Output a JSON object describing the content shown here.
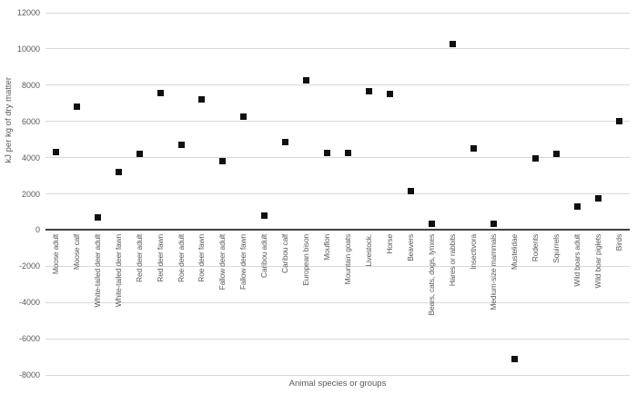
{
  "chart_data": {
    "type": "scatter",
    "title": "",
    "xlabel": "Animal species or groups",
    "ylabel": "kJ per kg of dry matter",
    "ylim": [
      -8000,
      12000
    ],
    "yticks": [
      12000,
      10000,
      8000,
      6000,
      4000,
      2000,
      0,
      -2000,
      -4000,
      -6000,
      -8000
    ],
    "grid": true,
    "legend_position": "none",
    "marker": {
      "shape": "square",
      "size": 7,
      "color": "#101010"
    },
    "x_label_rotation": "vertical-bottom-to-top",
    "categories": [
      "Moose adult",
      "Moose calf",
      "White-tailed deer adult",
      "White-tailed deer fawn",
      "Red deer adult",
      "Red deer fawn",
      "Roe deer adult",
      "Roe deer fawn",
      "Fallow deer adult",
      "Fallow deer fawn",
      "Caribou adult",
      "Caribou calf",
      "European bison",
      "Mouflon",
      "Mountain goats",
      "Livestock.",
      "Horse",
      "Beavers",
      "Bears, cats, dogs, lynxes",
      "Hares or rabbits",
      "Insectivora",
      "Medium-size mammals",
      "Mustelidae",
      "Rodents",
      "Squirrels",
      "Wild boars adult",
      "Wild boar piglets",
      "Birds"
    ],
    "values": [
      4300,
      6800,
      700,
      3200,
      4200,
      7550,
      4700,
      7200,
      3800,
      6250,
      800,
      4850,
      8250,
      4250,
      4250,
      7650,
      7500,
      2150,
      350,
      10250,
      4500,
      350,
      -7100,
      3950,
      4200,
      1300,
      1750,
      6000
    ]
  },
  "colors": {
    "background": "#ffffff",
    "gridline": "#d9d9d9",
    "zero_axis_line": "#3f3f3f",
    "label_text": "#595959",
    "marker": "#101010"
  }
}
